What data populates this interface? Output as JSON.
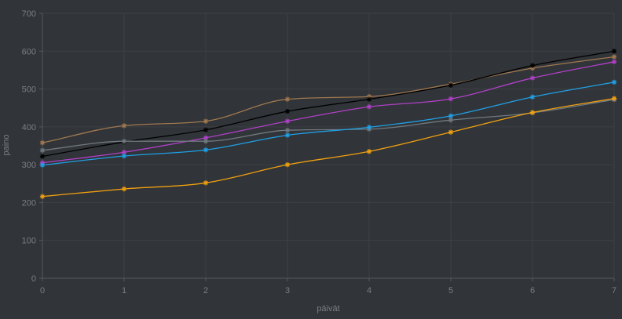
{
  "chart_data": {
    "type": "line",
    "xlabel": "päivät",
    "ylabel": "paino",
    "xlim": [
      0,
      7
    ],
    "ylim": [
      0,
      700
    ],
    "xticks": [
      "0",
      "1",
      "2",
      "3",
      "4",
      "5",
      "6",
      "7"
    ],
    "yticks": [
      "0",
      "100",
      "200",
      "300",
      "400",
      "500",
      "600",
      "700"
    ],
    "grid": true,
    "x": [
      0,
      1,
      2,
      3,
      4,
      5,
      6,
      7
    ],
    "series": [
      {
        "color": "#a07850",
        "values": [
          358,
          403,
          415,
          473,
          480,
          513,
          555,
          585
        ]
      },
      {
        "color": "#000000",
        "values": [
          322,
          360,
          392,
          441,
          473,
          510,
          562,
          600
        ]
      },
      {
        "color": "#b040c8",
        "values": [
          305,
          333,
          371,
          415,
          453,
          474,
          529,
          572
        ]
      },
      {
        "color": "#707a80",
        "values": [
          338,
          362,
          362,
          391,
          394,
          418,
          437,
          472
        ]
      },
      {
        "color": "#1fa0e6",
        "values": [
          299,
          323,
          339,
          378,
          399,
          429,
          479,
          518
        ]
      },
      {
        "color": "#f0a010",
        "values": [
          216,
          236,
          252,
          300,
          335,
          386,
          438,
          475
        ]
      }
    ]
  }
}
